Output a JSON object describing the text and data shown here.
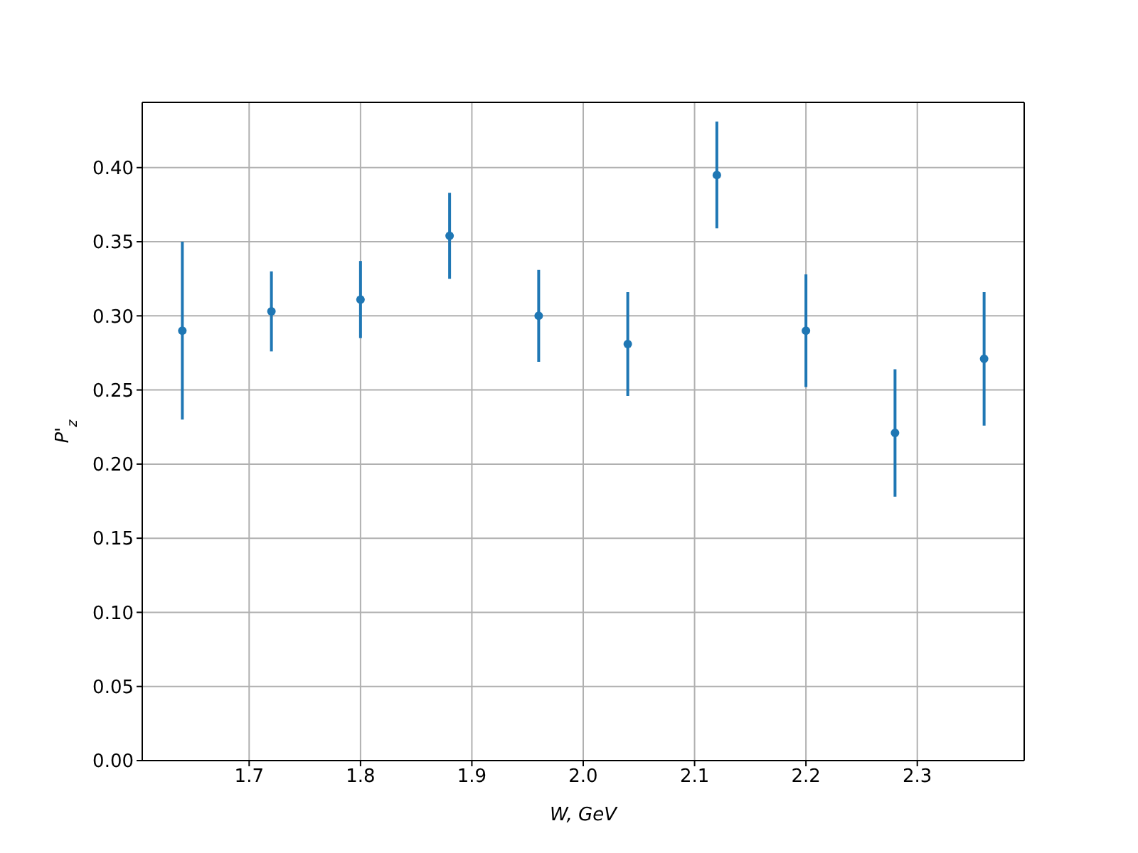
{
  "chart_data": {
    "type": "scatter",
    "xlabel": "W, GeV",
    "ylabel": "P'$_{z}$",
    "x": [
      1.64,
      1.72,
      1.8,
      1.88,
      1.96,
      2.04,
      2.12,
      2.2,
      2.28,
      2.36
    ],
    "series": [
      {
        "color": "#1f77b4",
        "values": [
          0.29,
          0.303,
          0.311,
          0.354,
          0.3,
          0.281,
          0.395,
          0.29,
          0.221,
          0.271
        ],
        "errors": [
          0.06,
          0.027,
          0.026,
          0.029,
          0.031,
          0.035,
          0.036,
          0.038,
          0.043,
          0.045
        ]
      }
    ],
    "xlim": [
      1.604,
      2.396
    ],
    "xticks": [
      {
        "value": 1.7,
        "label": "1.7"
      },
      {
        "value": 1.8,
        "label": "1.8"
      },
      {
        "value": 1.9,
        "label": "1.9"
      },
      {
        "value": 2.0,
        "label": "2.0"
      },
      {
        "value": 2.1,
        "label": "2.1"
      },
      {
        "value": 2.2,
        "label": "2.2"
      },
      {
        "value": 2.3,
        "label": "2.3"
      }
    ],
    "ylim": [
      0,
      0.444
    ],
    "yticks": [
      {
        "value": 0,
        "label": "0.00"
      },
      {
        "value": 0.05,
        "label": "0.05"
      },
      {
        "value": 0.1,
        "label": "0.10"
      },
      {
        "value": 0.15,
        "label": "0.15"
      },
      {
        "value": 0.2,
        "label": "0.20"
      },
      {
        "value": 0.25,
        "label": "0.25"
      },
      {
        "value": 0.3,
        "label": "0.30"
      },
      {
        "value": 0.35,
        "label": "0.35"
      },
      {
        "value": 0.4,
        "label": "0.40"
      }
    ],
    "grid": true,
    "marker": "circle"
  }
}
